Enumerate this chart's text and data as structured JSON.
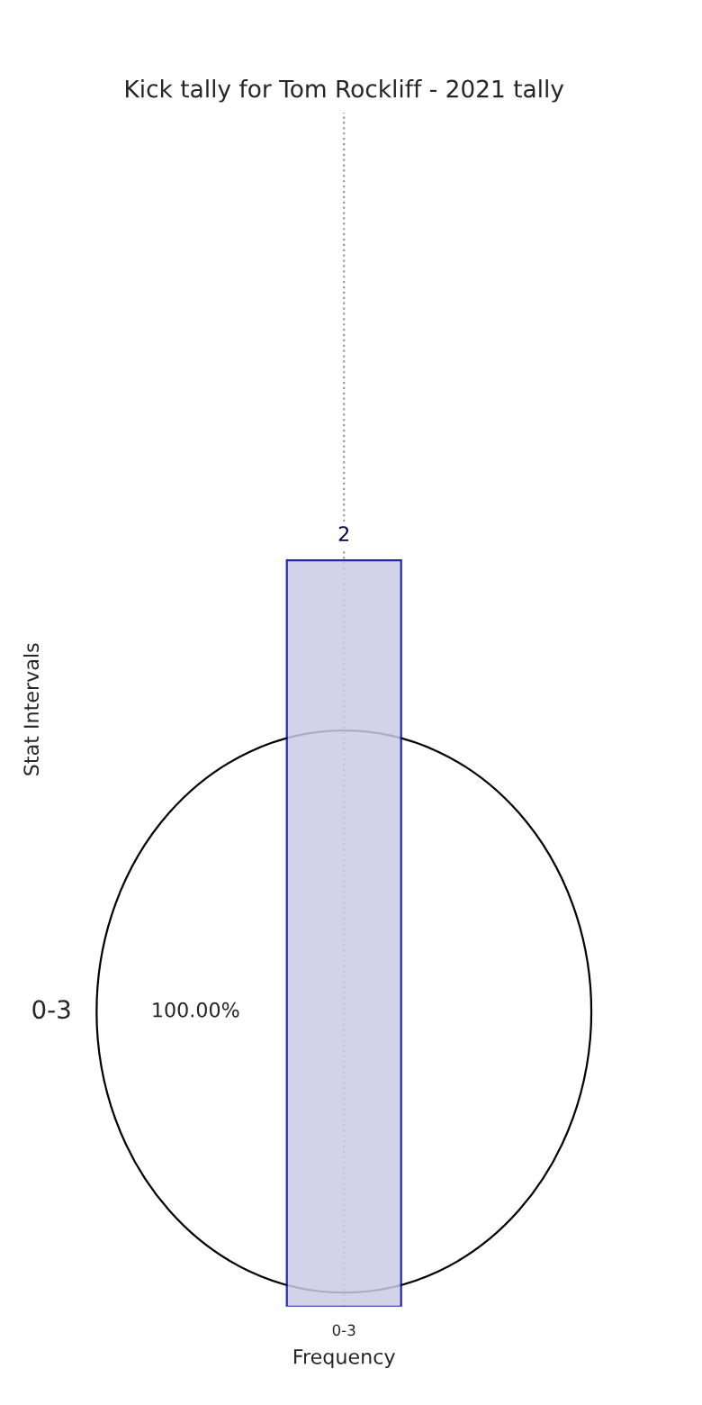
{
  "chart_data": [
    {
      "type": "pie",
      "categories": [
        "0-3"
      ],
      "values": [
        100
      ],
      "value_labels": [
        "100.00%"
      ],
      "colors": [
        "#ffffff"
      ]
    },
    {
      "type": "bar",
      "title": "Kick tally for Tom Rockliff - 2021 tally",
      "categories": [
        "0-3"
      ],
      "values": [
        2
      ],
      "data_labels": true,
      "color": "#cbcbe4",
      "xlabel": "Frequency",
      "ylabel": "Stat Intervals",
      "grid": "x",
      "ylim": [
        0,
        3.2
      ]
    }
  ]
}
